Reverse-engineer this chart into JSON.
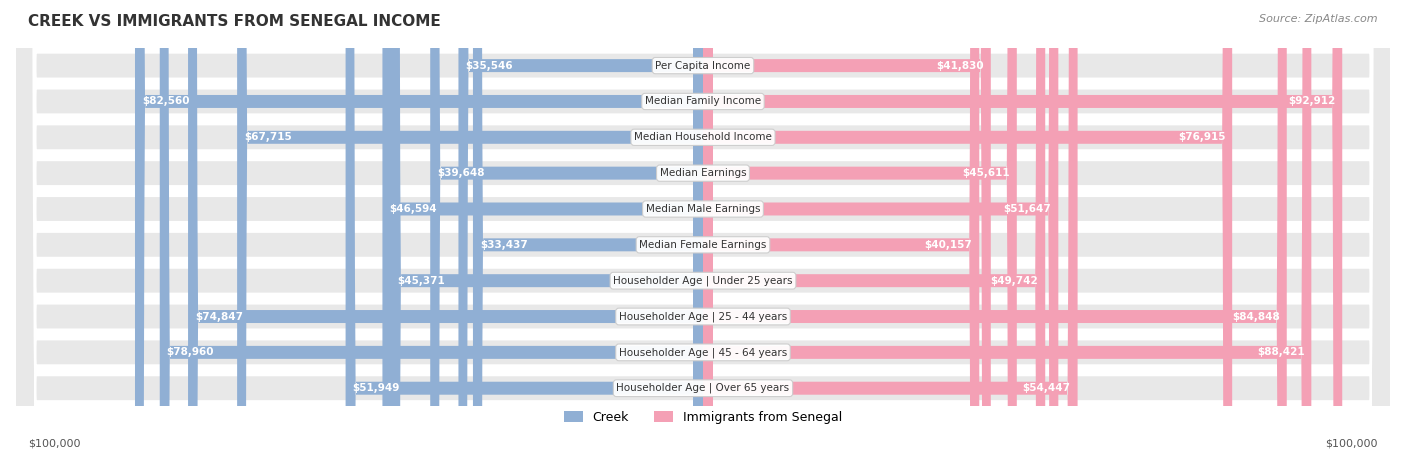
{
  "title": "CREEK VS IMMIGRANTS FROM SENEGAL INCOME",
  "source": "Source: ZipAtlas.com",
  "categories": [
    "Per Capita Income",
    "Median Family Income",
    "Median Household Income",
    "Median Earnings",
    "Median Male Earnings",
    "Median Female Earnings",
    "Householder Age | Under 25 years",
    "Householder Age | 25 - 44 years",
    "Householder Age | 45 - 64 years",
    "Householder Age | Over 65 years"
  ],
  "creek_values": [
    35546,
    82560,
    67715,
    39648,
    46594,
    33437,
    45371,
    74847,
    78960,
    51949
  ],
  "senegal_values": [
    41830,
    92912,
    76915,
    45611,
    51647,
    40157,
    49742,
    84848,
    88421,
    54447
  ],
  "creek_labels": [
    "$35,546",
    "$82,560",
    "$67,715",
    "$39,648",
    "$46,594",
    "$33,437",
    "$45,371",
    "$74,847",
    "$78,960",
    "$51,949"
  ],
  "senegal_labels": [
    "$41,830",
    "$92,912",
    "$76,915",
    "$45,611",
    "$51,647",
    "$40,157",
    "$49,742",
    "$84,848",
    "$88,421",
    "$54,447"
  ],
  "max_value": 100000,
  "creek_color": "#90afd4",
  "creek_color_dark": "#6a9cc4",
  "senegal_color": "#f4a0b5",
  "senegal_color_dark": "#e87090",
  "creek_label_color_light": "#333333",
  "creek_label_color_dark": "#ffffff",
  "senegal_label_color_light": "#333333",
  "senegal_label_color_dark": "#ffffff",
  "background_color": "#ffffff",
  "row_bg_color": "#f0f0f0",
  "legend_creek": "Creek",
  "legend_senegal": "Immigrants from Senegal",
  "xlabel_left": "$100,000",
  "xlabel_right": "$100,000"
}
